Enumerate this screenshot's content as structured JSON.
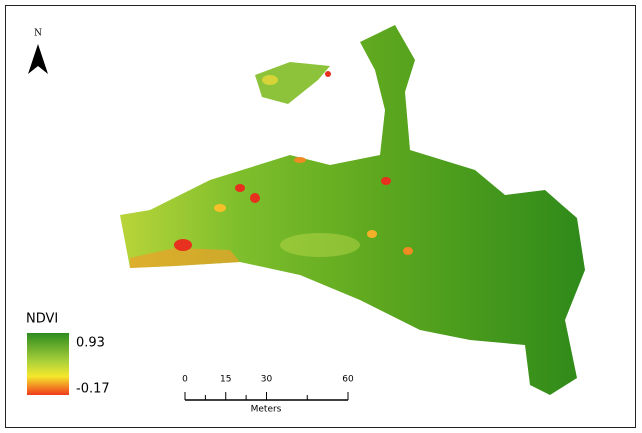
{
  "north_arrow": {
    "label": "N"
  },
  "legend": {
    "title": "NDVI",
    "max": 0.93,
    "min": -0.17
  },
  "scale_bar": {
    "ticks": [
      0,
      15,
      30,
      60
    ],
    "unit": "Meters"
  }
}
